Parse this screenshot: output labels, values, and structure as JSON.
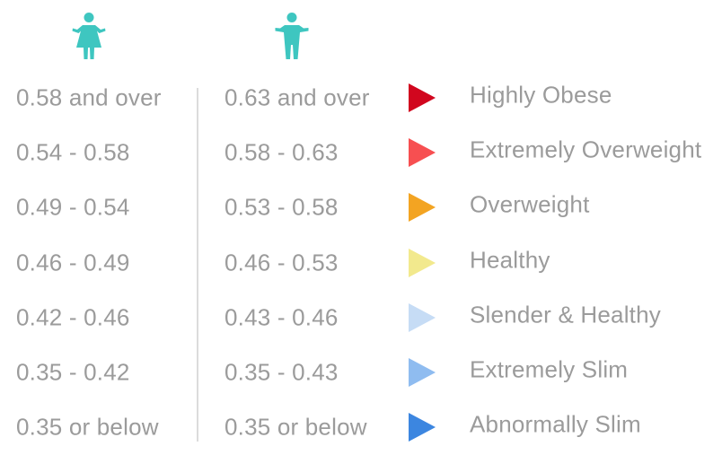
{
  "icons": {
    "female": "female-person-icon",
    "male": "male-person-icon",
    "color": "#3ec6c0"
  },
  "rows": [
    {
      "female": "0.58 and over",
      "male": "0.63 and over",
      "label": "Highly Obese",
      "color": "#d1061e"
    },
    {
      "female": "0.54 - 0.58",
      "male": "0.58 - 0.63",
      "label": "Extremely Overweight",
      "color": "#f74f51"
    },
    {
      "female": "0.49 - 0.54",
      "male": "0.53 - 0.58",
      "label": "Overweight",
      "color": "#f3a422"
    },
    {
      "female": "0.46 - 0.49",
      "male": "0.46 - 0.53",
      "label": "Healthy",
      "color": "#f2e98d"
    },
    {
      "female": "0.42 - 0.46",
      "male": "0.43 - 0.46",
      "label": "Slender & Healthy",
      "color": "#c6dcf5"
    },
    {
      "female": "0.35 - 0.42",
      "male": "0.35 - 0.43",
      "label": "Extremely Slim",
      "color": "#8fbcf0"
    },
    {
      "female": "0.35 or below",
      "male": "0.35 or below",
      "label": "Abnormally Slim",
      "color": "#3c86e0"
    }
  ]
}
